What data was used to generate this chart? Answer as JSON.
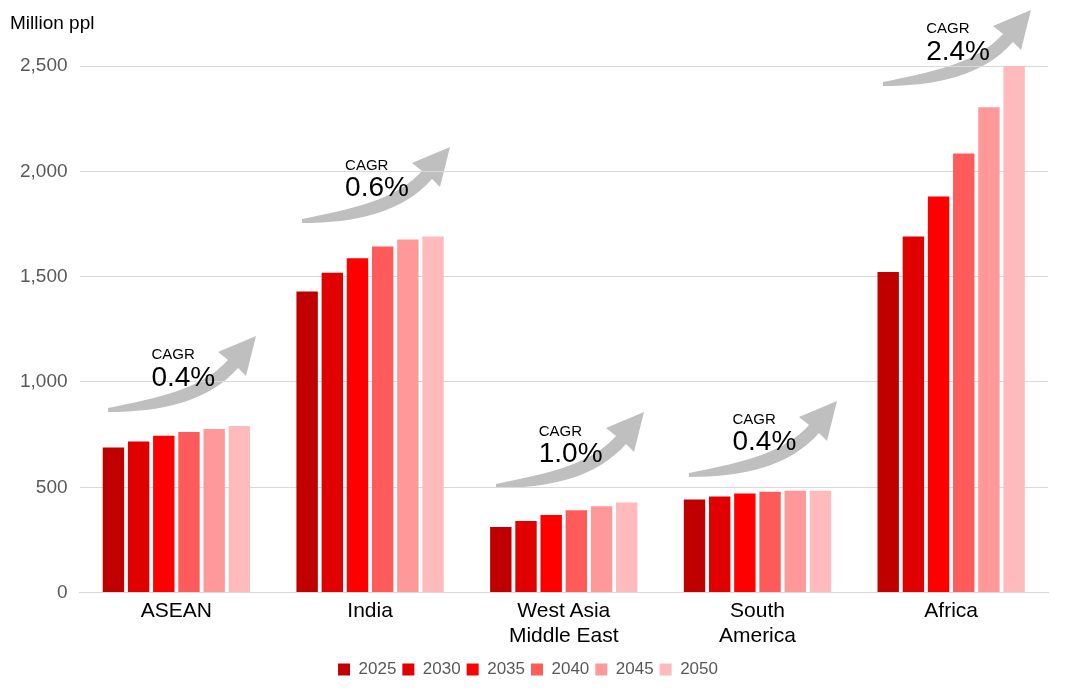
{
  "chart_data": {
    "type": "bar",
    "ylabel": "Million ppl",
    "categories": [
      "ASEAN",
      "India",
      "West Asia\nMiddle East",
      "South\nAmerica",
      "Africa"
    ],
    "series": [
      {
        "name": "2025",
        "color": "#c00000",
        "values": [
          689,
          1429,
          312,
          442,
          1522
        ]
      },
      {
        "name": "2030",
        "color": "#e00000",
        "values": [
          717,
          1518,
          340,
          456,
          1690
        ]
      },
      {
        "name": "2035",
        "color": "#ff0000",
        "values": [
          745,
          1587,
          368,
          470,
          1881
        ]
      },
      {
        "name": "2040",
        "color": "#ff5b5b",
        "values": [
          763,
          1643,
          391,
          479,
          2085
        ]
      },
      {
        "name": "2045",
        "color": "#ff9999",
        "values": [
          777,
          1676,
          410,
          484,
          2304
        ]
      },
      {
        "name": "2050",
        "color": "#ffbbbb",
        "values": [
          791,
          1690,
          428,
          484,
          2500
        ]
      }
    ],
    "ylim": [
      0,
      2500
    ],
    "yticks": [
      0,
      500,
      {
        "value": 1000,
        "label": "1,000"
      },
      {
        "value": 1500,
        "label": "1,500"
      },
      {
        "value": 2000,
        "label": "2,000"
      },
      {
        "value": 2500,
        "label": "2,500"
      }
    ],
    "grid": "y",
    "legend": "bottom",
    "annotations": [
      "CAGR",
      "0.4%",
      "CAGR",
      "0.6%",
      "CAGR",
      "1.0%",
      "CAGR",
      "0.4%",
      "CAGR",
      "2.4%"
    ]
  }
}
